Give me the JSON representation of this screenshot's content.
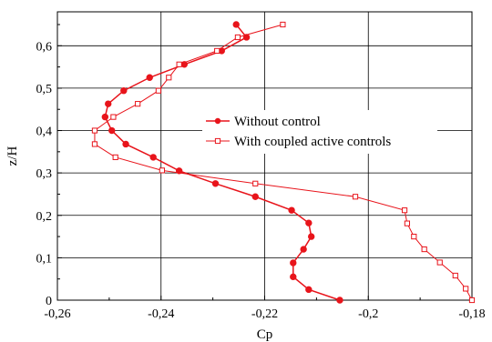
{
  "chart_data": {
    "type": "line",
    "xlabel": "Cp",
    "ylabel": "z/H",
    "xlim": [
      -0.26,
      -0.18
    ],
    "ylim": [
      0,
      0.68
    ],
    "grid": true,
    "legend_position": "center-right",
    "x_ticks": [
      "-0,26",
      "-0,24",
      "-0,22",
      "-0,2",
      "-0,18"
    ],
    "y_ticks": [
      "0",
      "0,1",
      "0,2",
      "0,3",
      "0,4",
      "0,5",
      "0,6"
    ],
    "x_tick_values": [
      -0.26,
      -0.24,
      -0.22,
      -0.2,
      -0.18
    ],
    "y_tick_values": [
      0,
      0.1,
      0.2,
      0.3,
      0.4,
      0.5,
      0.6
    ],
    "series_color": "#e8141b",
    "series": [
      {
        "name": "Without control",
        "marker": "filled-circle",
        "points": [
          [
            -0.2055,
            0.0
          ],
          [
            -0.2115,
            0.025
          ],
          [
            -0.2145,
            0.055
          ],
          [
            -0.2145,
            0.088
          ],
          [
            -0.2125,
            0.12
          ],
          [
            -0.211,
            0.15
          ],
          [
            -0.2115,
            0.182
          ],
          [
            -0.2148,
            0.212
          ],
          [
            -0.2218,
            0.244
          ],
          [
            -0.2295,
            0.275
          ],
          [
            -0.2365,
            0.305
          ],
          [
            -0.2415,
            0.337
          ],
          [
            -0.2468,
            0.368
          ],
          [
            -0.2495,
            0.4
          ],
          [
            -0.2508,
            0.432
          ],
          [
            -0.2502,
            0.463
          ],
          [
            -0.2472,
            0.494
          ],
          [
            -0.2422,
            0.525
          ],
          [
            -0.2355,
            0.556
          ],
          [
            -0.2283,
            0.588
          ],
          [
            -0.2235,
            0.62
          ],
          [
            -0.2255,
            0.65
          ]
        ]
      },
      {
        "name": "With coupled active controls",
        "marker": "open-square",
        "points": [
          [
            -0.18,
            0.0
          ],
          [
            -0.1812,
            0.027
          ],
          [
            -0.1832,
            0.058
          ],
          [
            -0.1862,
            0.089
          ],
          [
            -0.1892,
            0.12
          ],
          [
            -0.1912,
            0.15
          ],
          [
            -0.1925,
            0.181
          ],
          [
            -0.193,
            0.212
          ],
          [
            -0.2025,
            0.244
          ],
          [
            -0.2218,
            0.275
          ],
          [
            -0.2398,
            0.306
          ],
          [
            -0.2488,
            0.337
          ],
          [
            -0.2528,
            0.368
          ],
          [
            -0.2528,
            0.4
          ],
          [
            -0.2492,
            0.432
          ],
          [
            -0.2445,
            0.463
          ],
          [
            -0.2405,
            0.494
          ],
          [
            -0.2385,
            0.525
          ],
          [
            -0.2365,
            0.556
          ],
          [
            -0.2292,
            0.588
          ],
          [
            -0.2252,
            0.62
          ],
          [
            -0.2165,
            0.65
          ]
        ]
      }
    ]
  }
}
